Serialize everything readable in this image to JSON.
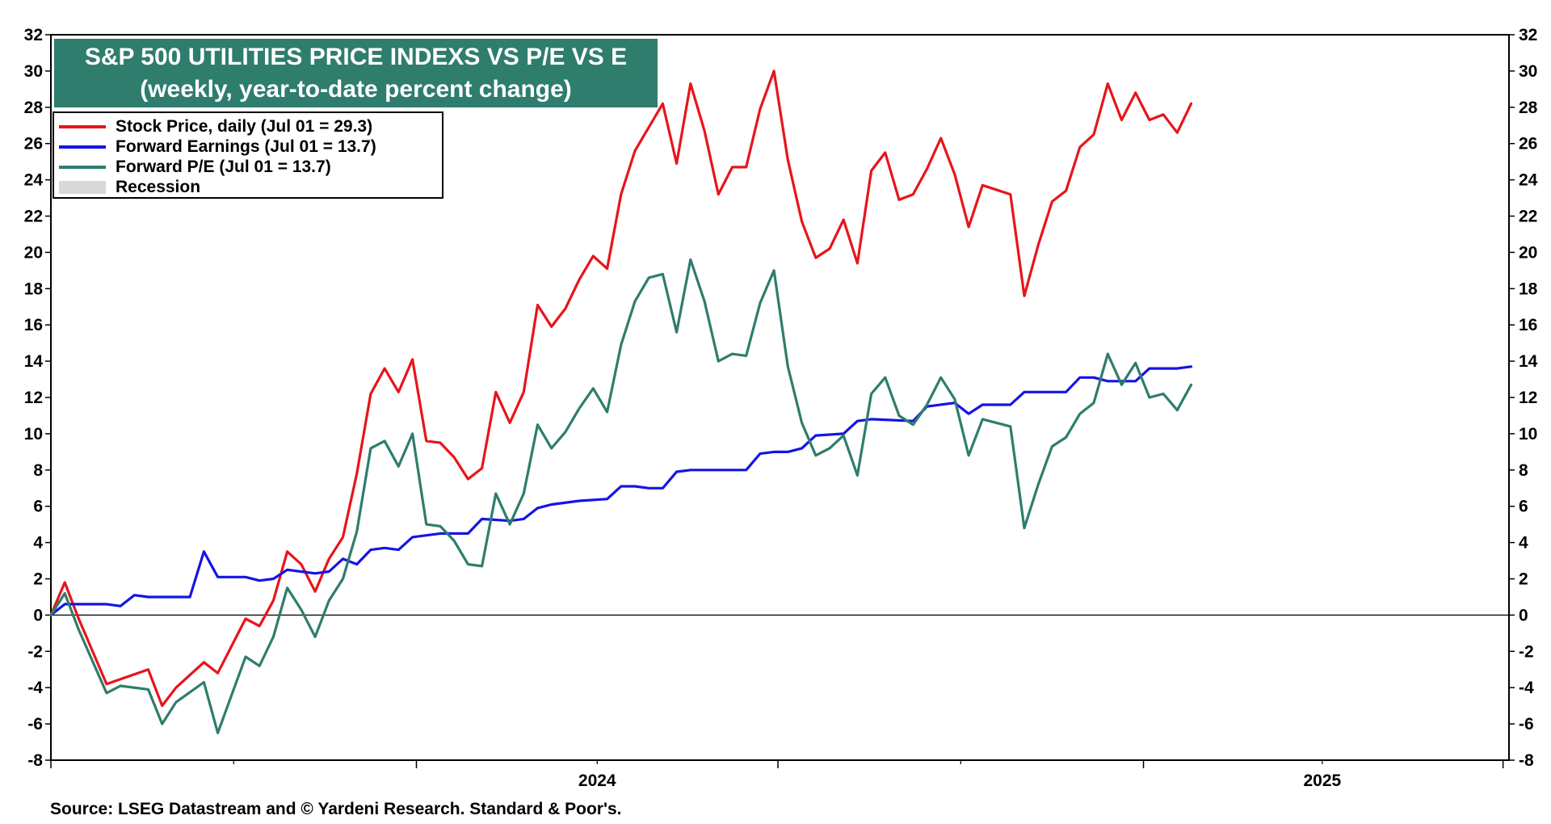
{
  "chart_data": {
    "type": "line",
    "title": "S&P 500 UTILITIES PRICE INDEXS VS P/E VS E",
    "subtitle": "(weekly, year-to-date percent change)",
    "source": "Source: LSEG Datastream and © Yardeni Research. Standard & Poor's.",
    "ylim": [
      -8,
      32
    ],
    "yticks": [
      -8,
      -6,
      -4,
      -2,
      0,
      2,
      4,
      6,
      8,
      10,
      12,
      14,
      16,
      18,
      20,
      22,
      24,
      26,
      28,
      30,
      32
    ],
    "ytick_labels": [
      "-8",
      "-6",
      "-4",
      "-2",
      "0",
      "2",
      "4",
      "6",
      "8",
      "10",
      "12",
      "14",
      "16",
      "18",
      "20",
      "22",
      "24",
      "26",
      "28",
      "30",
      "32"
    ],
    "xlim": [
      "2023-07-01",
      "2025-07-04"
    ],
    "x_major_ticks": [
      "2023-07-01",
      "2024-01-01",
      "2024-07-01",
      "2025-01-01",
      "2025-07-01"
    ],
    "x_minor_ticks": [
      "2023-10-01",
      "2024-04-01",
      "2024-10-01",
      "2025-04-01"
    ],
    "x_labels": [
      {
        "date": "2024-04-01",
        "text": "2024"
      },
      {
        "date": "2025-04-01",
        "text": "2025"
      }
    ],
    "legend_position": "top-left",
    "grid": false,
    "zero_line": true,
    "legend": [
      {
        "label": "Stock Price, daily (Jul 01 = 29.3)",
        "color": "#e8141b",
        "kind": "line"
      },
      {
        "label": "Forward Earnings (Jul 01 = 13.7)",
        "color": "#1414e6",
        "kind": "line"
      },
      {
        "label": "Forward P/E (Jul 01 = 13.7)",
        "color": "#2e7d6d",
        "kind": "line"
      },
      {
        "label": "Recession",
        "color": "#d9d9d9",
        "kind": "box"
      }
    ],
    "series": [
      {
        "name": "Stock Price, daily",
        "color": "#e8141b",
        "points": [
          [
            "2023-07-01",
            0
          ],
          [
            "2023-07-08",
            1.8
          ],
          [
            "2023-07-15",
            -0.2
          ],
          [
            "2023-07-29",
            -3.8
          ],
          [
            "2023-08-19",
            -3.0
          ],
          [
            "2023-08-26",
            -5.0
          ],
          [
            "2023-09-02",
            -4.0
          ],
          [
            "2023-09-16",
            -2.6
          ],
          [
            "2023-09-23",
            -3.2
          ],
          [
            "2023-10-07",
            -0.2
          ],
          [
            "2023-10-14",
            -0.6
          ],
          [
            "2023-10-21",
            0.8
          ],
          [
            "2023-10-28",
            3.5
          ],
          [
            "2023-11-04",
            2.8
          ],
          [
            "2023-11-11",
            1.3
          ],
          [
            "2023-11-18",
            3.1
          ],
          [
            "2023-11-25",
            4.3
          ],
          [
            "2023-12-02",
            7.8
          ],
          [
            "2023-12-09",
            12.2
          ],
          [
            "2023-12-16",
            13.6
          ],
          [
            "2023-12-23",
            12.3
          ],
          [
            "2023-12-30",
            14.1
          ],
          [
            "2024-01-06",
            9.6
          ],
          [
            "2024-01-13",
            9.5
          ],
          [
            "2024-01-20",
            8.7
          ],
          [
            "2024-01-27",
            7.5
          ],
          [
            "2024-02-03",
            8.1
          ],
          [
            "2024-02-10",
            12.3
          ],
          [
            "2024-02-17",
            10.6
          ],
          [
            "2024-02-24",
            12.3
          ],
          [
            "2024-03-02",
            17.1
          ],
          [
            "2024-03-09",
            15.9
          ],
          [
            "2024-03-16",
            16.9
          ],
          [
            "2024-03-23",
            18.5
          ],
          [
            "2024-03-30",
            19.8
          ],
          [
            "2024-04-06",
            19.1
          ],
          [
            "2024-04-13",
            23.2
          ],
          [
            "2024-04-20",
            25.6
          ],
          [
            "2024-04-27",
            26.9
          ],
          [
            "2024-05-04",
            28.2
          ],
          [
            "2024-05-11",
            24.9
          ],
          [
            "2024-05-18",
            29.3
          ],
          [
            "2024-05-25",
            26.7
          ],
          [
            "2024-06-01",
            23.2
          ],
          [
            "2024-06-08",
            24.7
          ],
          [
            "2024-06-15",
            24.7
          ],
          [
            "2024-06-22",
            27.9
          ],
          [
            "2024-06-29",
            30.0
          ],
          [
            "2024-07-06",
            25.1
          ],
          [
            "2024-07-13",
            21.7
          ],
          [
            "2024-07-20",
            19.7
          ],
          [
            "2024-07-27",
            20.2
          ],
          [
            "2024-08-03",
            21.8
          ],
          [
            "2024-08-10",
            19.4
          ],
          [
            "2024-08-17",
            24.5
          ],
          [
            "2024-08-24",
            25.5
          ],
          [
            "2024-08-31",
            22.9
          ],
          [
            "2024-09-07",
            23.2
          ],
          [
            "2024-09-14",
            24.6
          ],
          [
            "2024-09-21",
            26.3
          ],
          [
            "2024-09-28",
            24.3
          ],
          [
            "2024-10-05",
            21.4
          ],
          [
            "2024-10-12",
            23.7
          ],
          [
            "2024-10-26",
            23.2
          ],
          [
            "2024-11-02",
            17.6
          ],
          [
            "2024-11-09",
            20.4
          ],
          [
            "2024-11-16",
            22.8
          ],
          [
            "2024-11-23",
            23.4
          ],
          [
            "2024-11-30",
            25.8
          ],
          [
            "2024-12-07",
            26.5
          ],
          [
            "2024-12-14",
            29.3
          ],
          [
            "2024-12-21",
            27.3
          ],
          [
            "2024-12-28",
            28.8
          ],
          [
            "2025-01-04",
            27.3
          ],
          [
            "2025-01-11",
            27.6
          ],
          [
            "2025-01-18",
            26.6
          ],
          [
            "2025-01-25",
            28.2
          ]
        ]
      },
      {
        "name": "Forward Earnings",
        "color": "#1414e6",
        "points": [
          [
            "2023-07-01",
            0
          ],
          [
            "2023-07-08",
            0.6
          ],
          [
            "2023-07-29",
            0.6
          ],
          [
            "2023-08-05",
            0.5
          ],
          [
            "2023-08-12",
            1.1
          ],
          [
            "2023-08-19",
            1.0
          ],
          [
            "2023-09-09",
            1.0
          ],
          [
            "2023-09-16",
            3.5
          ],
          [
            "2023-09-23",
            2.1
          ],
          [
            "2023-10-07",
            2.1
          ],
          [
            "2023-10-14",
            1.9
          ],
          [
            "2023-10-21",
            2.0
          ],
          [
            "2023-10-28",
            2.5
          ],
          [
            "2023-11-11",
            2.3
          ],
          [
            "2023-11-18",
            2.4
          ],
          [
            "2023-11-25",
            3.1
          ],
          [
            "2023-12-02",
            2.8
          ],
          [
            "2023-12-09",
            3.6
          ],
          [
            "2023-12-16",
            3.7
          ],
          [
            "2023-12-23",
            3.6
          ],
          [
            "2023-12-30",
            4.3
          ],
          [
            "2024-01-13",
            4.5
          ],
          [
            "2024-01-27",
            4.5
          ],
          [
            "2024-02-03",
            5.3
          ],
          [
            "2024-02-17",
            5.2
          ],
          [
            "2024-02-24",
            5.3
          ],
          [
            "2024-03-02",
            5.9
          ],
          [
            "2024-03-09",
            6.1
          ],
          [
            "2024-03-23",
            6.3
          ],
          [
            "2024-04-06",
            6.4
          ],
          [
            "2024-04-13",
            7.1
          ],
          [
            "2024-04-20",
            7.1
          ],
          [
            "2024-04-27",
            7.0
          ],
          [
            "2024-05-04",
            7.0
          ],
          [
            "2024-05-11",
            7.9
          ],
          [
            "2024-05-18",
            8.0
          ],
          [
            "2024-06-15",
            8.0
          ],
          [
            "2024-06-22",
            8.9
          ],
          [
            "2024-06-29",
            9.0
          ],
          [
            "2024-07-06",
            9.0
          ],
          [
            "2024-07-13",
            9.2
          ],
          [
            "2024-07-20",
            9.9
          ],
          [
            "2024-08-03",
            10.0
          ],
          [
            "2024-08-10",
            10.7
          ],
          [
            "2024-08-17",
            10.8
          ],
          [
            "2024-09-07",
            10.7
          ],
          [
            "2024-09-14",
            11.5
          ],
          [
            "2024-09-28",
            11.7
          ],
          [
            "2024-10-05",
            11.1
          ],
          [
            "2024-10-12",
            11.6
          ],
          [
            "2024-10-26",
            11.6
          ],
          [
            "2024-11-02",
            12.3
          ],
          [
            "2024-11-23",
            12.3
          ],
          [
            "2024-11-30",
            13.1
          ],
          [
            "2024-12-07",
            13.1
          ],
          [
            "2024-12-14",
            12.9
          ],
          [
            "2024-12-28",
            12.9
          ],
          [
            "2025-01-04",
            13.6
          ],
          [
            "2025-01-18",
            13.6
          ],
          [
            "2025-01-25",
            13.7
          ]
        ]
      },
      {
        "name": "Forward P/E",
        "color": "#2e7d6d",
        "points": [
          [
            "2023-07-01",
            0
          ],
          [
            "2023-07-08",
            1.2
          ],
          [
            "2023-07-15",
            -0.8
          ],
          [
            "2023-07-29",
            -4.3
          ],
          [
            "2023-08-05",
            -3.9
          ],
          [
            "2023-08-19",
            -4.1
          ],
          [
            "2023-08-26",
            -6.0
          ],
          [
            "2023-09-02",
            -4.8
          ],
          [
            "2023-09-16",
            -3.7
          ],
          [
            "2023-09-23",
            -6.5
          ],
          [
            "2023-10-07",
            -2.3
          ],
          [
            "2023-10-14",
            -2.8
          ],
          [
            "2023-10-21",
            -1.2
          ],
          [
            "2023-10-28",
            1.5
          ],
          [
            "2023-11-04",
            0.3
          ],
          [
            "2023-11-11",
            -1.2
          ],
          [
            "2023-11-18",
            0.8
          ],
          [
            "2023-11-25",
            2.0
          ],
          [
            "2023-12-02",
            4.6
          ],
          [
            "2023-12-09",
            9.2
          ],
          [
            "2023-12-16",
            9.6
          ],
          [
            "2023-12-23",
            8.2
          ],
          [
            "2023-12-30",
            10.0
          ],
          [
            "2024-01-06",
            5.0
          ],
          [
            "2024-01-13",
            4.9
          ],
          [
            "2024-01-20",
            4.1
          ],
          [
            "2024-01-27",
            2.8
          ],
          [
            "2024-02-03",
            2.7
          ],
          [
            "2024-02-10",
            6.7
          ],
          [
            "2024-02-17",
            5.0
          ],
          [
            "2024-02-24",
            6.7
          ],
          [
            "2024-03-02",
            10.5
          ],
          [
            "2024-03-09",
            9.2
          ],
          [
            "2024-03-16",
            10.1
          ],
          [
            "2024-03-23",
            11.4
          ],
          [
            "2024-03-30",
            12.5
          ],
          [
            "2024-04-06",
            11.2
          ],
          [
            "2024-04-13",
            14.9
          ],
          [
            "2024-04-20",
            17.3
          ],
          [
            "2024-04-27",
            18.6
          ],
          [
            "2024-05-04",
            18.8
          ],
          [
            "2024-05-11",
            15.6
          ],
          [
            "2024-05-18",
            19.6
          ],
          [
            "2024-05-25",
            17.3
          ],
          [
            "2024-06-01",
            14.0
          ],
          [
            "2024-06-08",
            14.4
          ],
          [
            "2024-06-15",
            14.3
          ],
          [
            "2024-06-22",
            17.2
          ],
          [
            "2024-06-29",
            19.0
          ],
          [
            "2024-07-06",
            13.7
          ],
          [
            "2024-07-13",
            10.6
          ],
          [
            "2024-07-20",
            8.8
          ],
          [
            "2024-07-27",
            9.2
          ],
          [
            "2024-08-03",
            9.9
          ],
          [
            "2024-08-10",
            7.7
          ],
          [
            "2024-08-17",
            12.2
          ],
          [
            "2024-08-24",
            13.1
          ],
          [
            "2024-08-31",
            11.0
          ],
          [
            "2024-09-07",
            10.5
          ],
          [
            "2024-09-14",
            11.6
          ],
          [
            "2024-09-21",
            13.1
          ],
          [
            "2024-09-28",
            11.9
          ],
          [
            "2024-10-05",
            8.8
          ],
          [
            "2024-10-12",
            10.8
          ],
          [
            "2024-10-19",
            10.6
          ],
          [
            "2024-10-26",
            10.4
          ],
          [
            "2024-11-02",
            4.8
          ],
          [
            "2024-11-09",
            7.2
          ],
          [
            "2024-11-16",
            9.3
          ],
          [
            "2024-11-23",
            9.8
          ],
          [
            "2024-11-30",
            11.1
          ],
          [
            "2024-12-07",
            11.7
          ],
          [
            "2024-12-14",
            14.4
          ],
          [
            "2024-12-21",
            12.7
          ],
          [
            "2024-12-28",
            13.9
          ],
          [
            "2025-01-04",
            12.0
          ],
          [
            "2025-01-11",
            12.2
          ],
          [
            "2025-01-18",
            11.3
          ],
          [
            "2025-01-25",
            12.7
          ]
        ]
      }
    ]
  }
}
